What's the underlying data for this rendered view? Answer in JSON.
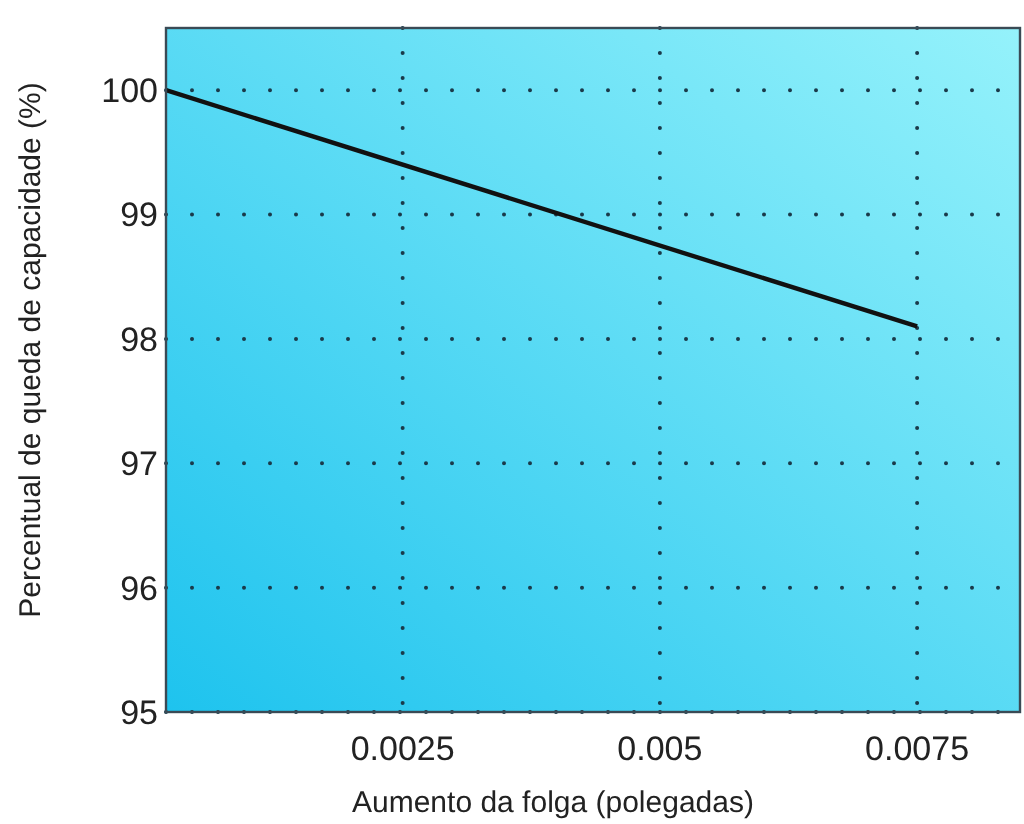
{
  "chart_data": {
    "type": "line",
    "xlabel": "Aumento da folga (polegadas)",
    "ylabel": "Percentual de queda de capacidade (%)",
    "series": [
      {
        "color": "#111111",
        "x": [
          0.0002,
          0.0075
        ],
        "values": [
          100.0,
          98.1
        ]
      }
    ],
    "xlim": [
      0.0002,
      0.0085
    ],
    "xticks": [
      0.0025,
      0.005,
      0.0075
    ],
    "ylim": [
      95,
      100.5
    ],
    "yticks": [
      95,
      96,
      97,
      98,
      99,
      100
    ],
    "grid": true,
    "line_style": "solid",
    "marker": "none"
  }
}
